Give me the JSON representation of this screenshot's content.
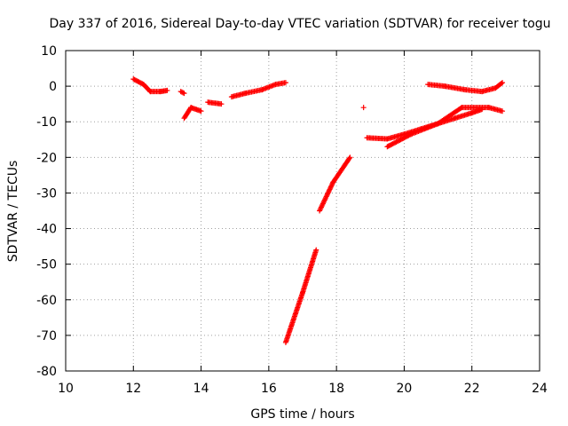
{
  "chart_data": {
    "type": "scatter",
    "title": "Day 337 of 2016, Sidereal Day-to-day VTEC variation (SDTVAR) for receiver togu",
    "xlabel": "GPS time / hours",
    "ylabel": "SDTVAR / TECUs",
    "xlim": [
      10,
      24
    ],
    "ylim": [
      -80,
      10
    ],
    "xticks": [
      "10",
      "12",
      "14",
      "16",
      "18",
      "20",
      "22",
      "24"
    ],
    "yticks": [
      "10",
      "0",
      "-10",
      "-20",
      "-30",
      "-40",
      "-50",
      "-60",
      "-70",
      "-80"
    ],
    "grid": true,
    "marker": "+",
    "color": "#ff0000",
    "segments": [
      {
        "x": [
          12.0,
          12.3,
          12.5,
          12.8,
          13.0
        ],
        "y": [
          2.0,
          0.5,
          -1.5,
          -1.5,
          -1.2
        ]
      },
      {
        "x": [
          13.4,
          13.5
        ],
        "y": [
          -1.5,
          -2.0
        ]
      },
      {
        "x": [
          13.5,
          13.7,
          14.0
        ],
        "y": [
          -9.0,
          -6.0,
          -7.0
        ]
      },
      {
        "x": [
          14.2,
          14.6
        ],
        "y": [
          -4.5,
          -5.0
        ]
      },
      {
        "x": [
          14.9,
          15.3,
          15.8,
          16.2,
          16.5
        ],
        "y": [
          -3.0,
          -2.0,
          -1.0,
          0.5,
          1.0
        ]
      },
      {
        "x": [
          16.5,
          17.0,
          17.4
        ],
        "y": [
          -72.0,
          -58.0,
          -46.0
        ]
      },
      {
        "x": [
          17.5,
          17.9,
          18.4
        ],
        "y": [
          -35.0,
          -27.0,
          -20.0
        ]
      },
      {
        "x": [
          18.8
        ],
        "y": [
          -6.0
        ]
      },
      {
        "x": [
          18.9,
          19.5,
          20.0,
          20.5,
          21.0,
          21.5,
          22.0,
          22.3
        ],
        "y": [
          -14.5,
          -14.8,
          -13.5,
          -12.0,
          -10.5,
          -9.0,
          -7.5,
          -6.5
        ]
      },
      {
        "x": [
          19.5,
          20.2,
          21.0,
          21.7,
          22.5,
          22.9
        ],
        "y": [
          -17.0,
          -13.5,
          -10.5,
          -6.0,
          -6.0,
          -7.0
        ]
      },
      {
        "x": [
          20.7,
          21.2,
          21.8,
          22.3,
          22.7,
          22.9
        ],
        "y": [
          0.5,
          0.0,
          -1.0,
          -1.5,
          -0.5,
          1.0
        ]
      }
    ]
  }
}
